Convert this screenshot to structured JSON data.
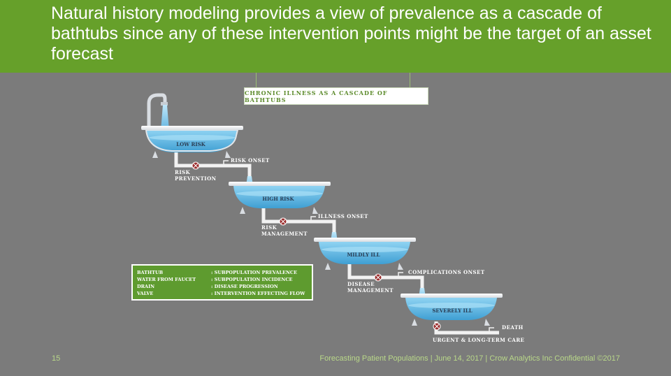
{
  "slide": {
    "title": "Natural history modeling provides a view of prevalence as a cascade of bathtubs since any of these intervention points might be the target of an asset forecast",
    "number": "15",
    "footer": "Forecasting Patient Populations | June 14, 2017 | Crow Analytics Inc Confidential ©2017"
  },
  "diagram": {
    "banner": "CHRONIC ILLNESS AS A CASCADE OF BATHTUBS",
    "tubs": [
      "LOW RISK",
      "HIGH RISK",
      "MILDLY ILL",
      "SEVERELY ILL"
    ],
    "flows": [
      "RISK ONSET",
      "ILLNESS ONSET",
      "COMPLICATIONS ONSET",
      "DEATH"
    ],
    "valves": [
      {
        "line1": "RISK",
        "line2": "PREVENTION"
      },
      {
        "line1": "RISK",
        "line2": "MANAGEMENT"
      },
      {
        "line1": "DISEASE",
        "line2": "MANAGEMENT"
      },
      {
        "line1": "URGENT & LONG-TERM CARE",
        "line2": ""
      }
    ]
  },
  "legend": [
    {
      "term": "BATHTUB",
      "definition": ": SUBPOPULATION PREVALENCE"
    },
    {
      "term": "WATER FROM FAUCET",
      "definition": ": SUBPOPULATION INCIDENCE"
    },
    {
      "term": "DRAIN",
      "definition": ": DISEASE PROGRESSION"
    },
    {
      "term": "VALVE",
      "definition": ": INTERVENTION EFFECTING FLOW"
    }
  ],
  "colors": {
    "header_green": "#66a02a",
    "background": "#7b7b7b",
    "water": "#5bb7e0",
    "valve": "#9b2d2d",
    "legend_green": "#5e9b2f"
  }
}
